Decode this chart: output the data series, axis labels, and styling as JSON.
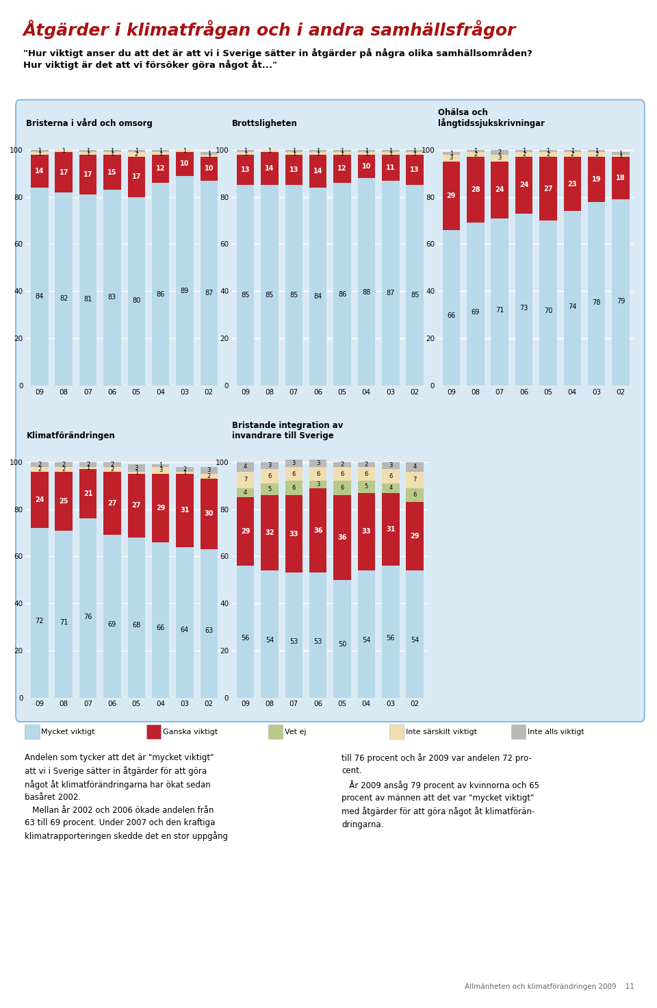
{
  "title": "Åtgärder i klimatfrågan och i andra samhällsfrågor",
  "subtitle1": "\"Hur viktigt anser du att det är att vi i Sverige sätter in åtgärder på några olika samhällsområden?",
  "subtitle2": "Hur viktigt är det att vi försöker göra något åt...\"",
  "years": [
    "09",
    "08",
    "07",
    "06",
    "05",
    "04",
    "03",
    "02"
  ],
  "panels": [
    {
      "title": "Bristerna i vård och omsorg",
      "mycket_viktigt": [
        84,
        82,
        81,
        83,
        80,
        86,
        89,
        87
      ],
      "ganska_viktigt": [
        14,
        17,
        17,
        15,
        17,
        12,
        10,
        10
      ],
      "vet_ej": [
        0,
        0,
        0,
        0,
        0,
        0,
        0,
        0
      ],
      "inte_sarskilt": [
        1,
        1,
        1,
        1,
        2,
        1,
        1,
        1
      ],
      "inte_alls": [
        1,
        0,
        1,
        1,
        1,
        1,
        0,
        1
      ]
    },
    {
      "title": "Brottsligheten",
      "mycket_viktigt": [
        85,
        85,
        85,
        84,
        86,
        88,
        87,
        85
      ],
      "ganska_viktigt": [
        13,
        14,
        13,
        14,
        12,
        10,
        11,
        13
      ],
      "vet_ej": [
        0,
        0,
        0,
        0,
        0,
        0,
        0,
        0
      ],
      "inte_sarskilt": [
        1,
        1,
        1,
        1,
        1,
        1,
        1,
        1
      ],
      "inte_alls": [
        1,
        0,
        1,
        1,
        1,
        1,
        1,
        1
      ]
    },
    {
      "title": "Ohälsa och\nlångtidssjukskrivningar",
      "mycket_viktigt": [
        66,
        69,
        71,
        73,
        70,
        74,
        78,
        79
      ],
      "ganska_viktigt": [
        29,
        28,
        24,
        24,
        27,
        23,
        19,
        18
      ],
      "vet_ej": [
        0,
        0,
        0,
        0,
        0,
        0,
        0,
        0
      ],
      "inte_sarskilt": [
        3,
        2,
        3,
        2,
        2,
        2,
        2,
        1
      ],
      "inte_alls": [
        1,
        1,
        2,
        1,
        1,
        1,
        1,
        1
      ]
    },
    {
      "title": "Klimatförändringen",
      "mycket_viktigt": [
        72,
        71,
        76,
        69,
        68,
        66,
        64,
        63
      ],
      "ganska_viktigt": [
        24,
        25,
        21,
        27,
        27,
        29,
        31,
        30
      ],
      "vet_ej": [
        0,
        0,
        0,
        0,
        0,
        0,
        0,
        0
      ],
      "inte_sarskilt": [
        2,
        2,
        1,
        2,
        1,
        3,
        1,
        2
      ],
      "inte_alls": [
        2,
        2,
        2,
        2,
        3,
        1,
        2,
        3
      ]
    },
    {
      "title": "Bristande integration av\ninvandrare till Sverige",
      "mycket_viktigt": [
        56,
        54,
        53,
        53,
        50,
        54,
        56,
        54
      ],
      "ganska_viktigt": [
        29,
        32,
        33,
        36,
        36,
        33,
        31,
        29
      ],
      "vet_ej": [
        4,
        5,
        6,
        3,
        6,
        5,
        4,
        6
      ],
      "inte_sarskilt": [
        7,
        6,
        6,
        6,
        6,
        6,
        6,
        7
      ],
      "inte_alls": [
        4,
        3,
        3,
        3,
        2,
        2,
        3,
        4
      ]
    }
  ],
  "colors": {
    "mycket_viktigt": "#b8d9ea",
    "ganska_viktigt": "#c0202a",
    "vet_ej": "#b8c98a",
    "inte_sarskilt": "#f0ddb0",
    "inte_alls": "#b8b8b8"
  },
  "chart_bg": "#daeaf5",
  "bar_width": 0.72
}
